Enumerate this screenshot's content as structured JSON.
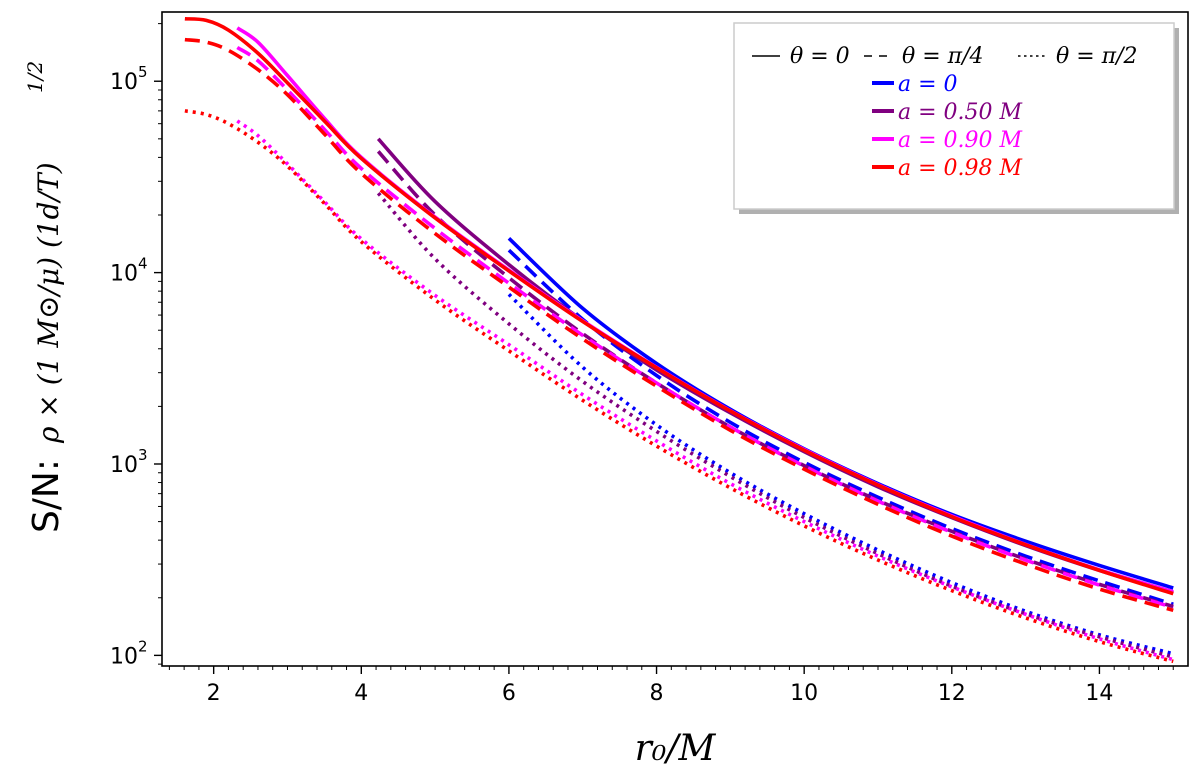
{
  "chart_data": {
    "type": "line",
    "title": "",
    "xlabel": "r₀/M",
    "ylabel_prefix": "S/N:",
    "ylabel_math": "ρ × (1 M⊙/μ) (1d/T)",
    "ylabel_exponent": "1/2",
    "x_ticks": [
      2,
      4,
      6,
      8,
      10,
      12,
      14
    ],
    "y_ticks": [
      {
        "value": 100,
        "base": "10",
        "exp": "2"
      },
      {
        "value": 1000,
        "base": "10",
        "exp": "3"
      },
      {
        "value": 10000,
        "base": "10",
        "exp": "4"
      },
      {
        "value": 100000,
        "base": "10",
        "exp": "5"
      }
    ],
    "xlim": [
      1.3,
      15.2
    ],
    "ylim": [
      88,
      230000
    ],
    "yscale": "log",
    "grid": false,
    "legend_placement": "top-right",
    "legend": {
      "style_entries": [
        {
          "label": "θ = 0",
          "dash": "solid"
        },
        {
          "label": "θ = π/4",
          "dash": "dashed"
        },
        {
          "label": "θ = π/2",
          "dash": "dotted"
        }
      ],
      "color_entries": [
        {
          "label": "a = 0",
          "color": "#0000ff"
        },
        {
          "label": "a = 0.50 M",
          "color": "#800080"
        },
        {
          "label": "a = 0.90 M",
          "color": "#ff00ff"
        },
        {
          "label": "a = 0.98 M",
          "color": "#ff0000"
        }
      ]
    },
    "series": [
      {
        "name": "a=0, θ=0",
        "color": "#0000ff",
        "dash": "solid",
        "x": [
          6,
          7,
          8,
          9,
          10,
          11,
          12,
          13,
          14,
          15
        ],
        "y": [
          15100,
          6500,
          3350,
          1930,
          1200,
          790,
          545,
          395,
          295,
          225
        ]
      },
      {
        "name": "a=0, θ=π/4",
        "color": "#0000ff",
        "dash": "dashed",
        "x": [
          6,
          7,
          8,
          9,
          10,
          11,
          12,
          13,
          14,
          15
        ],
        "y": [
          13100,
          5700,
          2900,
          1650,
          1020,
          670,
          460,
          330,
          245,
          185
        ]
      },
      {
        "name": "a=0, θ=π/2",
        "color": "#0000ff",
        "dash": "dotted",
        "x": [
          6,
          7,
          8,
          9,
          10,
          11,
          12,
          13,
          14,
          15
        ],
        "y": [
          7700,
          3200,
          1600,
          900,
          550,
          355,
          240,
          170,
          128,
          102
        ]
      },
      {
        "name": "a=0.50M, θ=0",
        "color": "#800080",
        "dash": "solid",
        "x": [
          4.23,
          5,
          6,
          7,
          8,
          9,
          10,
          11,
          12,
          13,
          14,
          15
        ],
        "y": [
          50000,
          23500,
          11000,
          5600,
          3100,
          1850,
          1160,
          760,
          525,
          375,
          278,
          212
        ]
      },
      {
        "name": "a=0.50M, θ=π/4",
        "color": "#800080",
        "dash": "dashed",
        "x": [
          4.23,
          5,
          6,
          7,
          8,
          9,
          10,
          11,
          12,
          13,
          14,
          15
        ],
        "y": [
          43000,
          20000,
          9400,
          4800,
          2650,
          1560,
          980,
          645,
          445,
          318,
          235,
          180
        ]
      },
      {
        "name": "a=0.50M, θ=π/2",
        "color": "#800080",
        "dash": "dotted",
        "x": [
          4.23,
          5,
          6,
          7,
          8,
          9,
          10,
          11,
          12,
          13,
          14,
          15
        ],
        "y": [
          26000,
          11800,
          5400,
          2700,
          1480,
          860,
          525,
          340,
          230,
          165,
          125,
          98
        ]
      },
      {
        "name": "a=0.90M, θ=0",
        "color": "#ff00ff",
        "dash": "solid",
        "x": [
          2.32,
          2.6,
          3,
          3.5,
          4,
          5,
          6,
          7,
          8,
          9,
          10,
          11,
          12,
          13,
          14,
          15
        ],
        "y": [
          190000,
          160000,
          107000,
          64000,
          40000,
          19500,
          10300,
          5600,
          3200,
          1900,
          1190,
          780,
          535,
          380,
          280,
          215
        ]
      },
      {
        "name": "a=0.90M, θ=π/4",
        "color": "#ff00ff",
        "dash": "dashed",
        "x": [
          2.32,
          2.6,
          3,
          3.5,
          4,
          5,
          6,
          7,
          8,
          9,
          10,
          11,
          12,
          13,
          14,
          15
        ],
        "y": [
          150000,
          128000,
          90000,
          56000,
          35000,
          17000,
          8800,
          4700,
          2650,
          1560,
          975,
          640,
          440,
          315,
          233,
          178
        ]
      },
      {
        "name": "a=0.90M, θ=π/2",
        "color": "#ff00ff",
        "dash": "dotted",
        "x": [
          2.32,
          2.6,
          3,
          3.5,
          4,
          5,
          6,
          7,
          8,
          9,
          10,
          11,
          12,
          13,
          14,
          15
        ],
        "y": [
          62000,
          52000,
          37000,
          23500,
          15000,
          7600,
          4200,
          2300,
          1320,
          790,
          500,
          330,
          228,
          164,
          122,
          95
        ]
      },
      {
        "name": "a=0.98M, θ=0",
        "color": "#ff0000",
        "dash": "solid",
        "x": [
          1.61,
          1.9,
          2.2,
          2.6,
          3,
          3.5,
          4,
          5,
          6,
          7,
          8,
          9,
          10,
          11,
          12,
          13,
          14,
          15
        ],
        "y": [
          212000,
          208000,
          185000,
          140000,
          98000,
          62000,
          39500,
          19300,
          10200,
          5550,
          3180,
          1890,
          1180,
          775,
          530,
          378,
          278,
          210
        ]
      },
      {
        "name": "a=0.98M, θ=π/4",
        "color": "#ff0000",
        "dash": "dashed",
        "x": [
          1.61,
          1.9,
          2.2,
          2.6,
          3,
          3.5,
          4,
          5,
          6,
          7,
          8,
          9,
          10,
          11,
          12,
          13,
          14,
          15
        ],
        "y": [
          165000,
          160000,
          145000,
          115000,
          85000,
          53000,
          33000,
          16000,
          8400,
          4500,
          2550,
          1500,
          940,
          615,
          420,
          300,
          222,
          172
        ]
      },
      {
        "name": "a=0.98M, θ=π/2",
        "color": "#ff0000",
        "dash": "dotted",
        "x": [
          1.61,
          1.9,
          2.2,
          2.6,
          3,
          3.5,
          4,
          5,
          6,
          7,
          8,
          9,
          10,
          11,
          12,
          13,
          14,
          15
        ],
        "y": [
          70000,
          67000,
          60000,
          48000,
          36000,
          23000,
          14500,
          7200,
          3900,
          2150,
          1240,
          750,
          475,
          315,
          218,
          157,
          118,
          93
        ]
      }
    ]
  }
}
